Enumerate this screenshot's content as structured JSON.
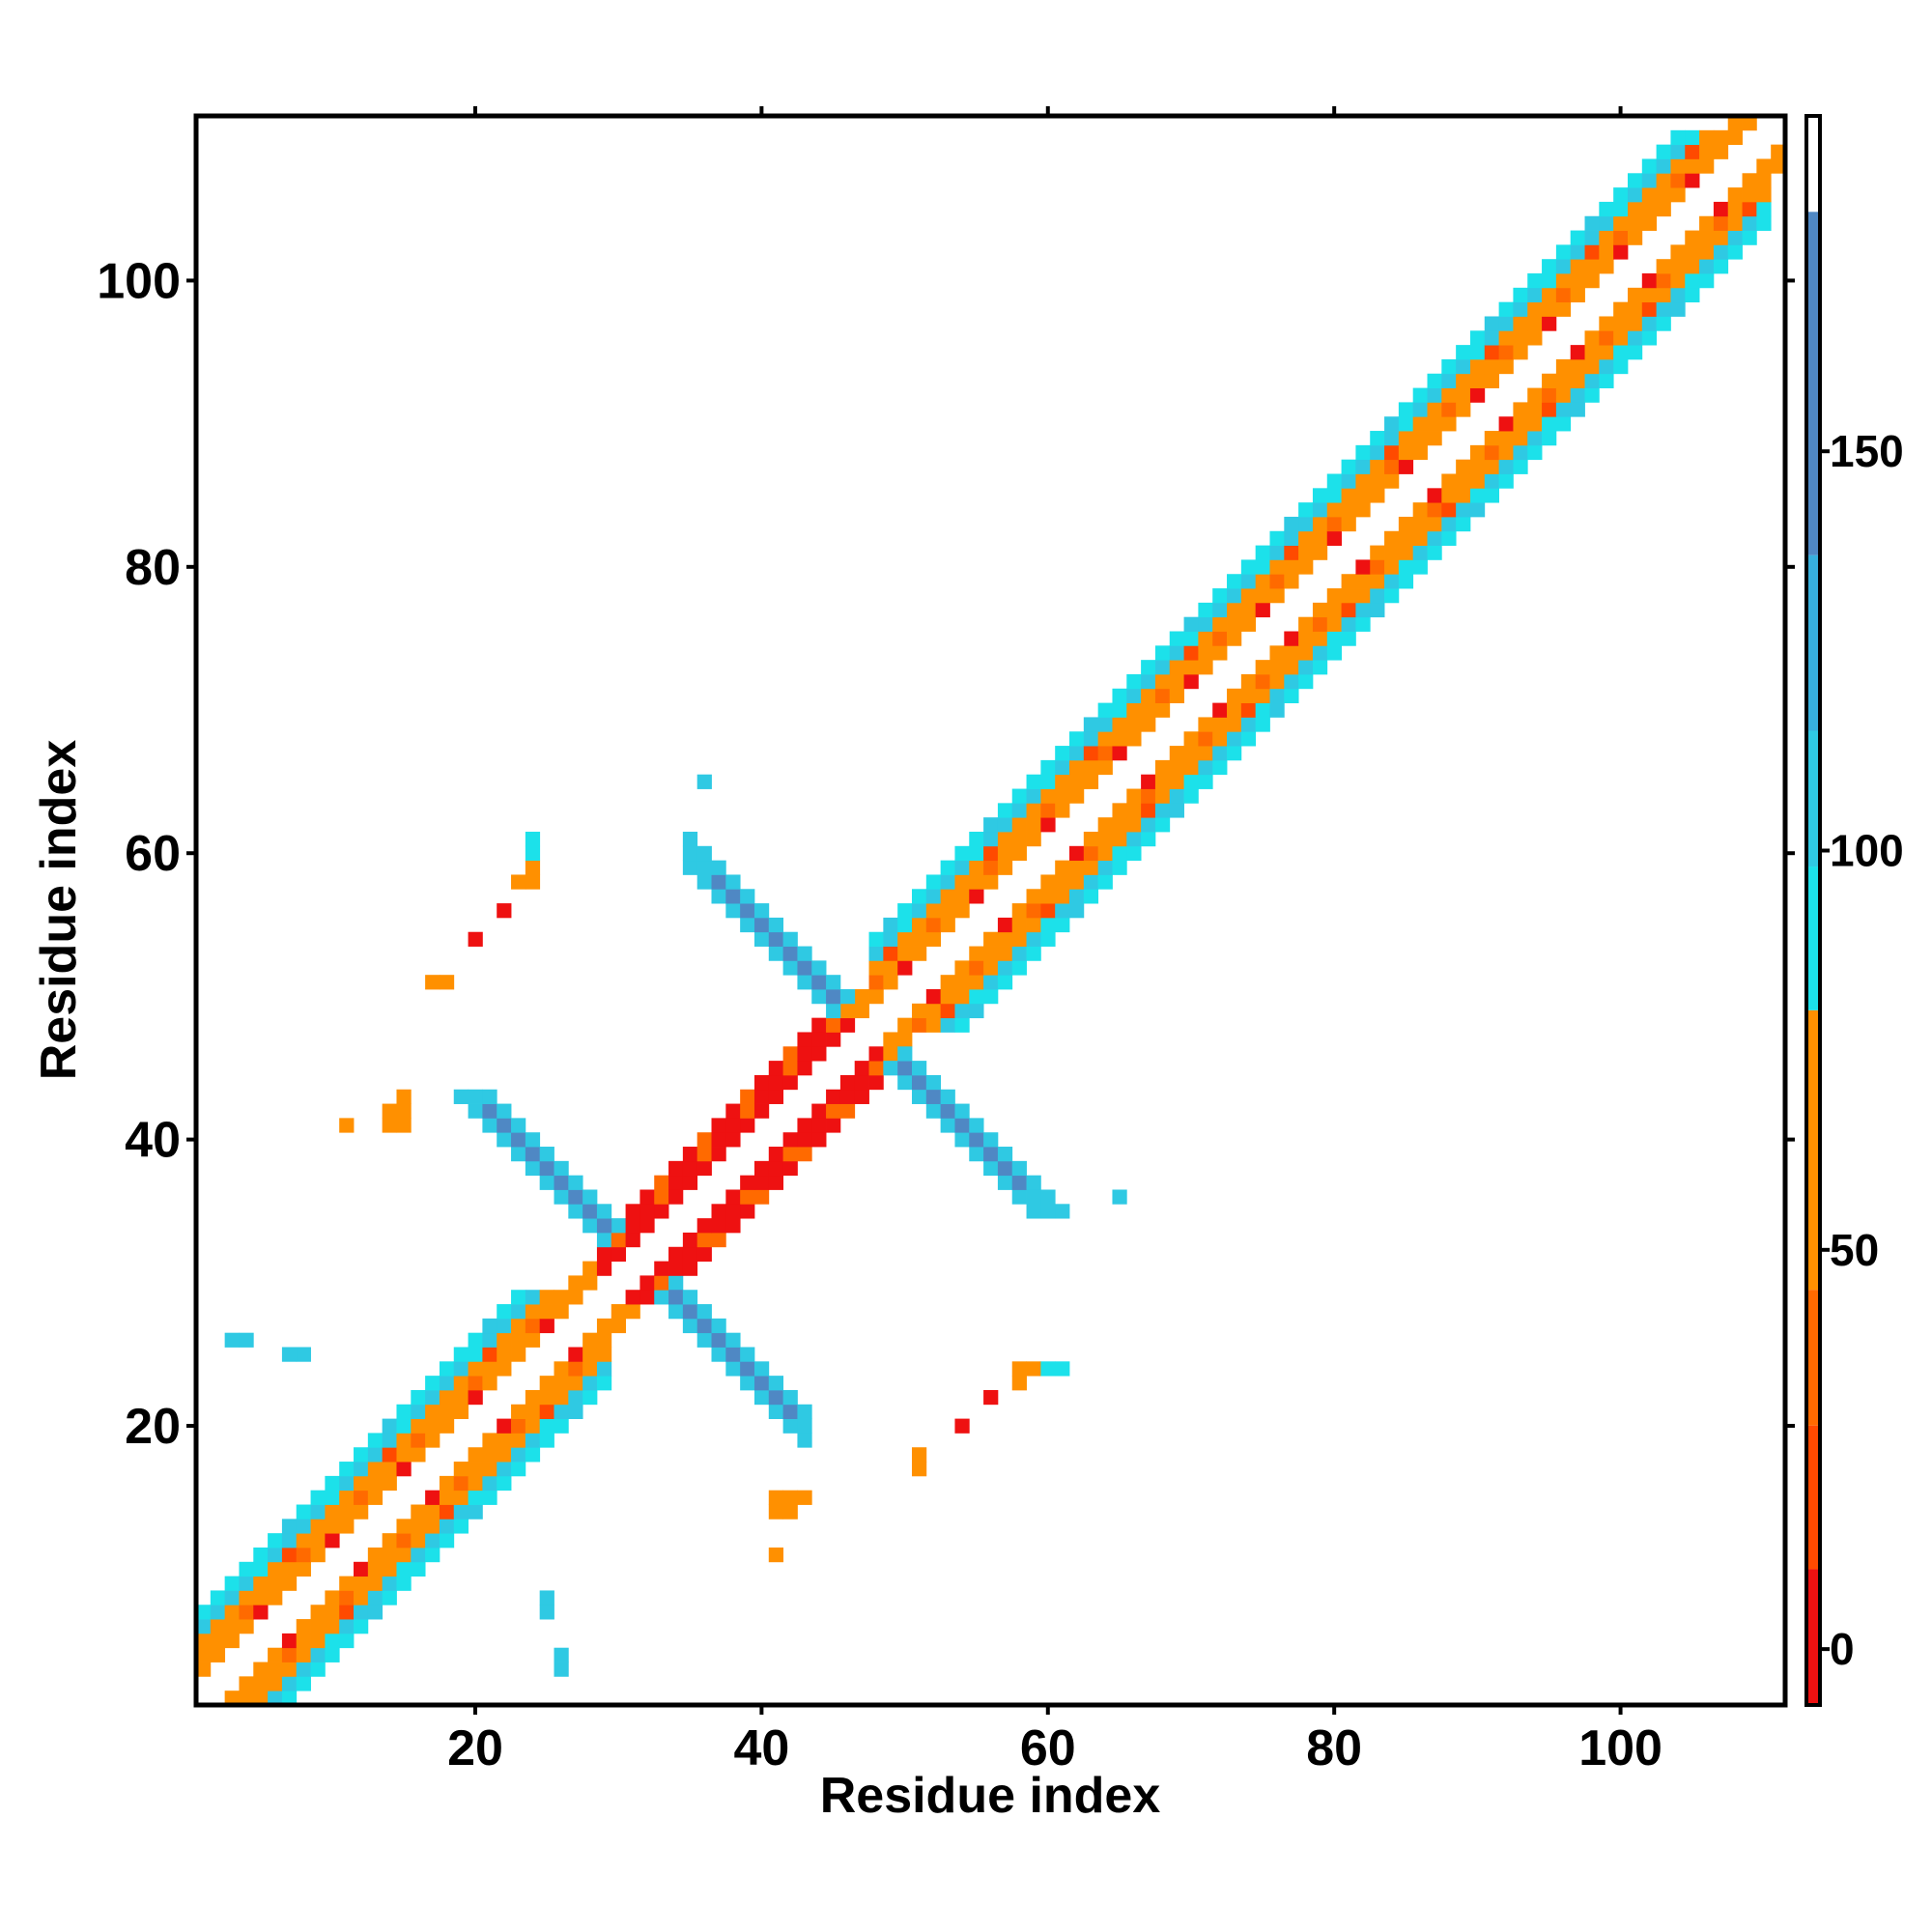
{
  "chart_data": {
    "type": "heatmap",
    "title": "",
    "xlabel": "Residue index",
    "ylabel": "Residue index",
    "xlim": [
      1,
      111
    ],
    "ylim": [
      1,
      111
    ],
    "x_ticks": [
      "20",
      "40",
      "60",
      "80",
      "100"
    ],
    "y_ticks": [
      "20",
      "40",
      "60",
      "80",
      "100"
    ],
    "x_tick_values": [
      20,
      40,
      60,
      80,
      100
    ],
    "y_tick_values": [
      20,
      40,
      60,
      80,
      100
    ],
    "colorbar": {
      "range": [
        -7,
        192
      ],
      "ticks": [
        "0",
        "50",
        "100",
        "150"
      ],
      "tick_values": [
        0,
        50,
        100,
        150
      ],
      "segments": [
        {
          "from": -7,
          "to": 10,
          "color": "#ee1111"
        },
        {
          "from": 10,
          "to": 28,
          "color": "#ff4a00"
        },
        {
          "from": 28,
          "to": 45,
          "color": "#ff6a00"
        },
        {
          "from": 45,
          "to": 80,
          "color": "#ff9000"
        },
        {
          "from": 80,
          "to": 98,
          "color": "#1ce1ea"
        },
        {
          "from": 98,
          "to": 115,
          "color": "#2fc9e3"
        },
        {
          "from": 115,
          "to": 137,
          "color": "#37b0dd"
        },
        {
          "from": 137,
          "to": 180,
          "color": "#4f88c4"
        },
        {
          "from": 180,
          "to": 192,
          "color": "#ffffff"
        }
      ]
    },
    "palette": {
      "red": "#ee1111",
      "orange": "#ff7300",
      "cyan": "#1ce1ea",
      "steel_blue": "#4f88c4"
    },
    "structure": {
      "helix_segments": [
        [
          1,
          29
        ],
        [
          48,
          110
        ]
      ],
      "strand_segments": [
        [
          29,
          48
        ]
      ],
      "hairpin_turns": [
        31.5,
        47.5
      ],
      "antiparallel_pairs": [
        {
          "i_range": [
            19,
            43
          ],
          "j_range": [
            19,
            43
          ],
          "turn_center": 31.5,
          "value": 165
        },
        {
          "i_range": [
            35,
            62
          ],
          "j_range": [
            35,
            62
          ],
          "turn_center": 47.5,
          "value": 160
        }
      ],
      "sparse_points": [
        {
          "x": 11,
          "y": 41,
          "value": 45
        },
        {
          "x": 14,
          "y": 42,
          "value": 45
        },
        {
          "x": 15,
          "y": 41,
          "value": 45
        },
        {
          "x": 15,
          "y": 43,
          "value": 45
        },
        {
          "x": 17,
          "y": 51,
          "value": 45
        },
        {
          "x": 20,
          "y": 54,
          "value": 5
        },
        {
          "x": 22,
          "y": 56,
          "value": 5
        },
        {
          "x": 23,
          "y": 58,
          "value": 45
        },
        {
          "x": 24,
          "y": 59,
          "value": 60
        },
        {
          "x": 24,
          "y": 61,
          "value": 90
        },
        {
          "x": 36,
          "y": 65,
          "value": 110
        },
        {
          "x": 4,
          "y": 26,
          "value": 110
        },
        {
          "x": 8,
          "y": 25,
          "value": 110
        },
        {
          "x": 25,
          "y": 7,
          "value": 110
        },
        {
          "x": 26,
          "y": 3,
          "value": 110
        },
        {
          "x": 41,
          "y": 11,
          "value": 45
        },
        {
          "x": 41,
          "y": 14,
          "value": 45
        },
        {
          "x": 42,
          "y": 15,
          "value": 45
        },
        {
          "x": 43,
          "y": 15,
          "value": 45
        },
        {
          "x": 51,
          "y": 18,
          "value": 45
        },
        {
          "x": 54,
          "y": 20,
          "value": 5
        },
        {
          "x": 56,
          "y": 22,
          "value": 5
        },
        {
          "x": 58,
          "y": 24,
          "value": 60
        },
        {
          "x": 60,
          "y": 24,
          "value": 90
        },
        {
          "x": 65,
          "y": 36,
          "value": 110
        }
      ]
    }
  }
}
